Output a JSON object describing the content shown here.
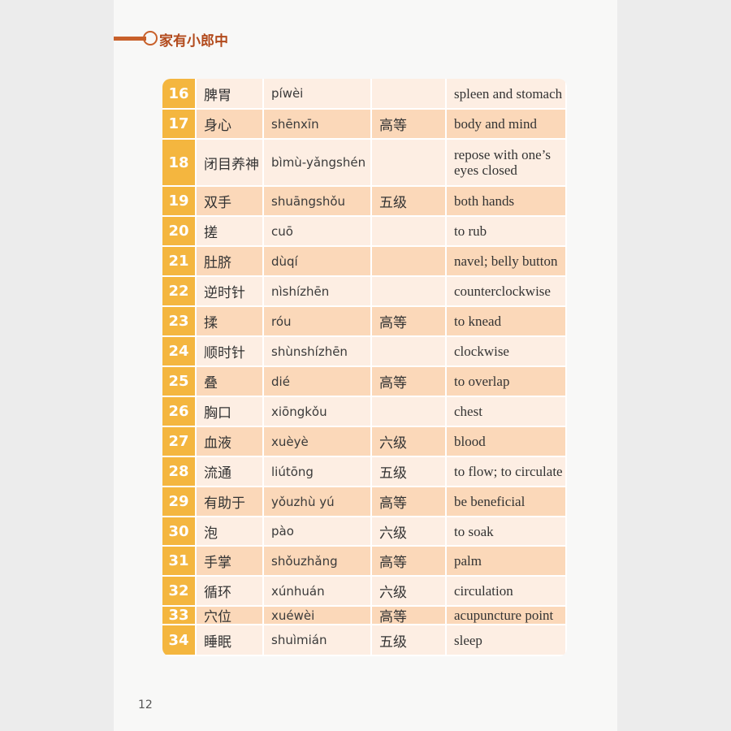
{
  "header": {
    "title": "家有小郎中"
  },
  "table": {
    "rows": [
      {
        "number": 16,
        "word": "脾胃",
        "pinyin": "píwèi",
        "meaning": "spleen and stomach"
      },
      {
        "number": 17,
        "word": "身心",
        "pinyin": "shēnxīn",
        "level": "高等",
        "meaning": "body and mind"
      },
      {
        "number": 18,
        "word": "闭目养神",
        "pinyin": "bìmù-yǎngshén",
        "meaning": "repose with one’s eyes closed"
      },
      {
        "number": 19,
        "word": "双手",
        "pinyin": "shuāngshǒu",
        "level": "五级",
        "meaning": "both hands"
      },
      {
        "number": 20,
        "word": "搓",
        "pinyin": "cuō",
        "meaning": "to rub"
      },
      {
        "number": 21,
        "word": "肚脐",
        "pinyin": "dùqí",
        "meaning": "navel; belly button"
      },
      {
        "number": 22,
        "word": "逆时针",
        "pinyin": "nìshízhēn",
        "meaning": "counterclockwise"
      },
      {
        "number": 23,
        "word": "揉",
        "pinyin": "róu",
        "level": "高等",
        "meaning": "to knead"
      },
      {
        "number": 24,
        "word": "顺时针",
        "pinyin": "shùnshízhēn",
        "meaning": "clockwise"
      },
      {
        "number": 25,
        "word": "叠",
        "pinyin": "dié",
        "level": "高等",
        "meaning": "to overlap"
      },
      {
        "number": 26,
        "word": "胸口",
        "pinyin": "xiōngkǒu",
        "meaning": "chest"
      },
      {
        "number": 27,
        "word": "血液",
        "pinyin": "xuèyè",
        "level": "六级",
        "meaning": "blood"
      },
      {
        "number": 28,
        "word": "流通",
        "pinyin": "liútōng",
        "level": "五级",
        "meaning": "to flow; to circulate"
      },
      {
        "number": 29,
        "word": "有助于",
        "pinyin": "yǒuzhù yú",
        "level": "高等",
        "meaning": "be beneficial"
      },
      {
        "number": 30,
        "word": "泡",
        "pinyin": "pào",
        "level": "六级",
        "meaning": "to soak"
      },
      {
        "number": 31,
        "word": "手掌",
        "pinyin": "shǒuzhǎng",
        "level": "高等",
        "meaning": "palm"
      },
      {
        "number": 32,
        "word": "循环",
        "pinyin": "xúnhuán",
        "level": "六级",
        "meaning": "circulation"
      },
      {
        "number": 33,
        "word": "穴位",
        "pinyin": "xuéwèi",
        "level": "高等",
        "meaning": "acupuncture point"
      },
      {
        "number": 34,
        "word": "睡眠",
        "pinyin": "shuìmián",
        "level": "五级",
        "meaning": "sleep"
      }
    ]
  },
  "page_number": 12
}
